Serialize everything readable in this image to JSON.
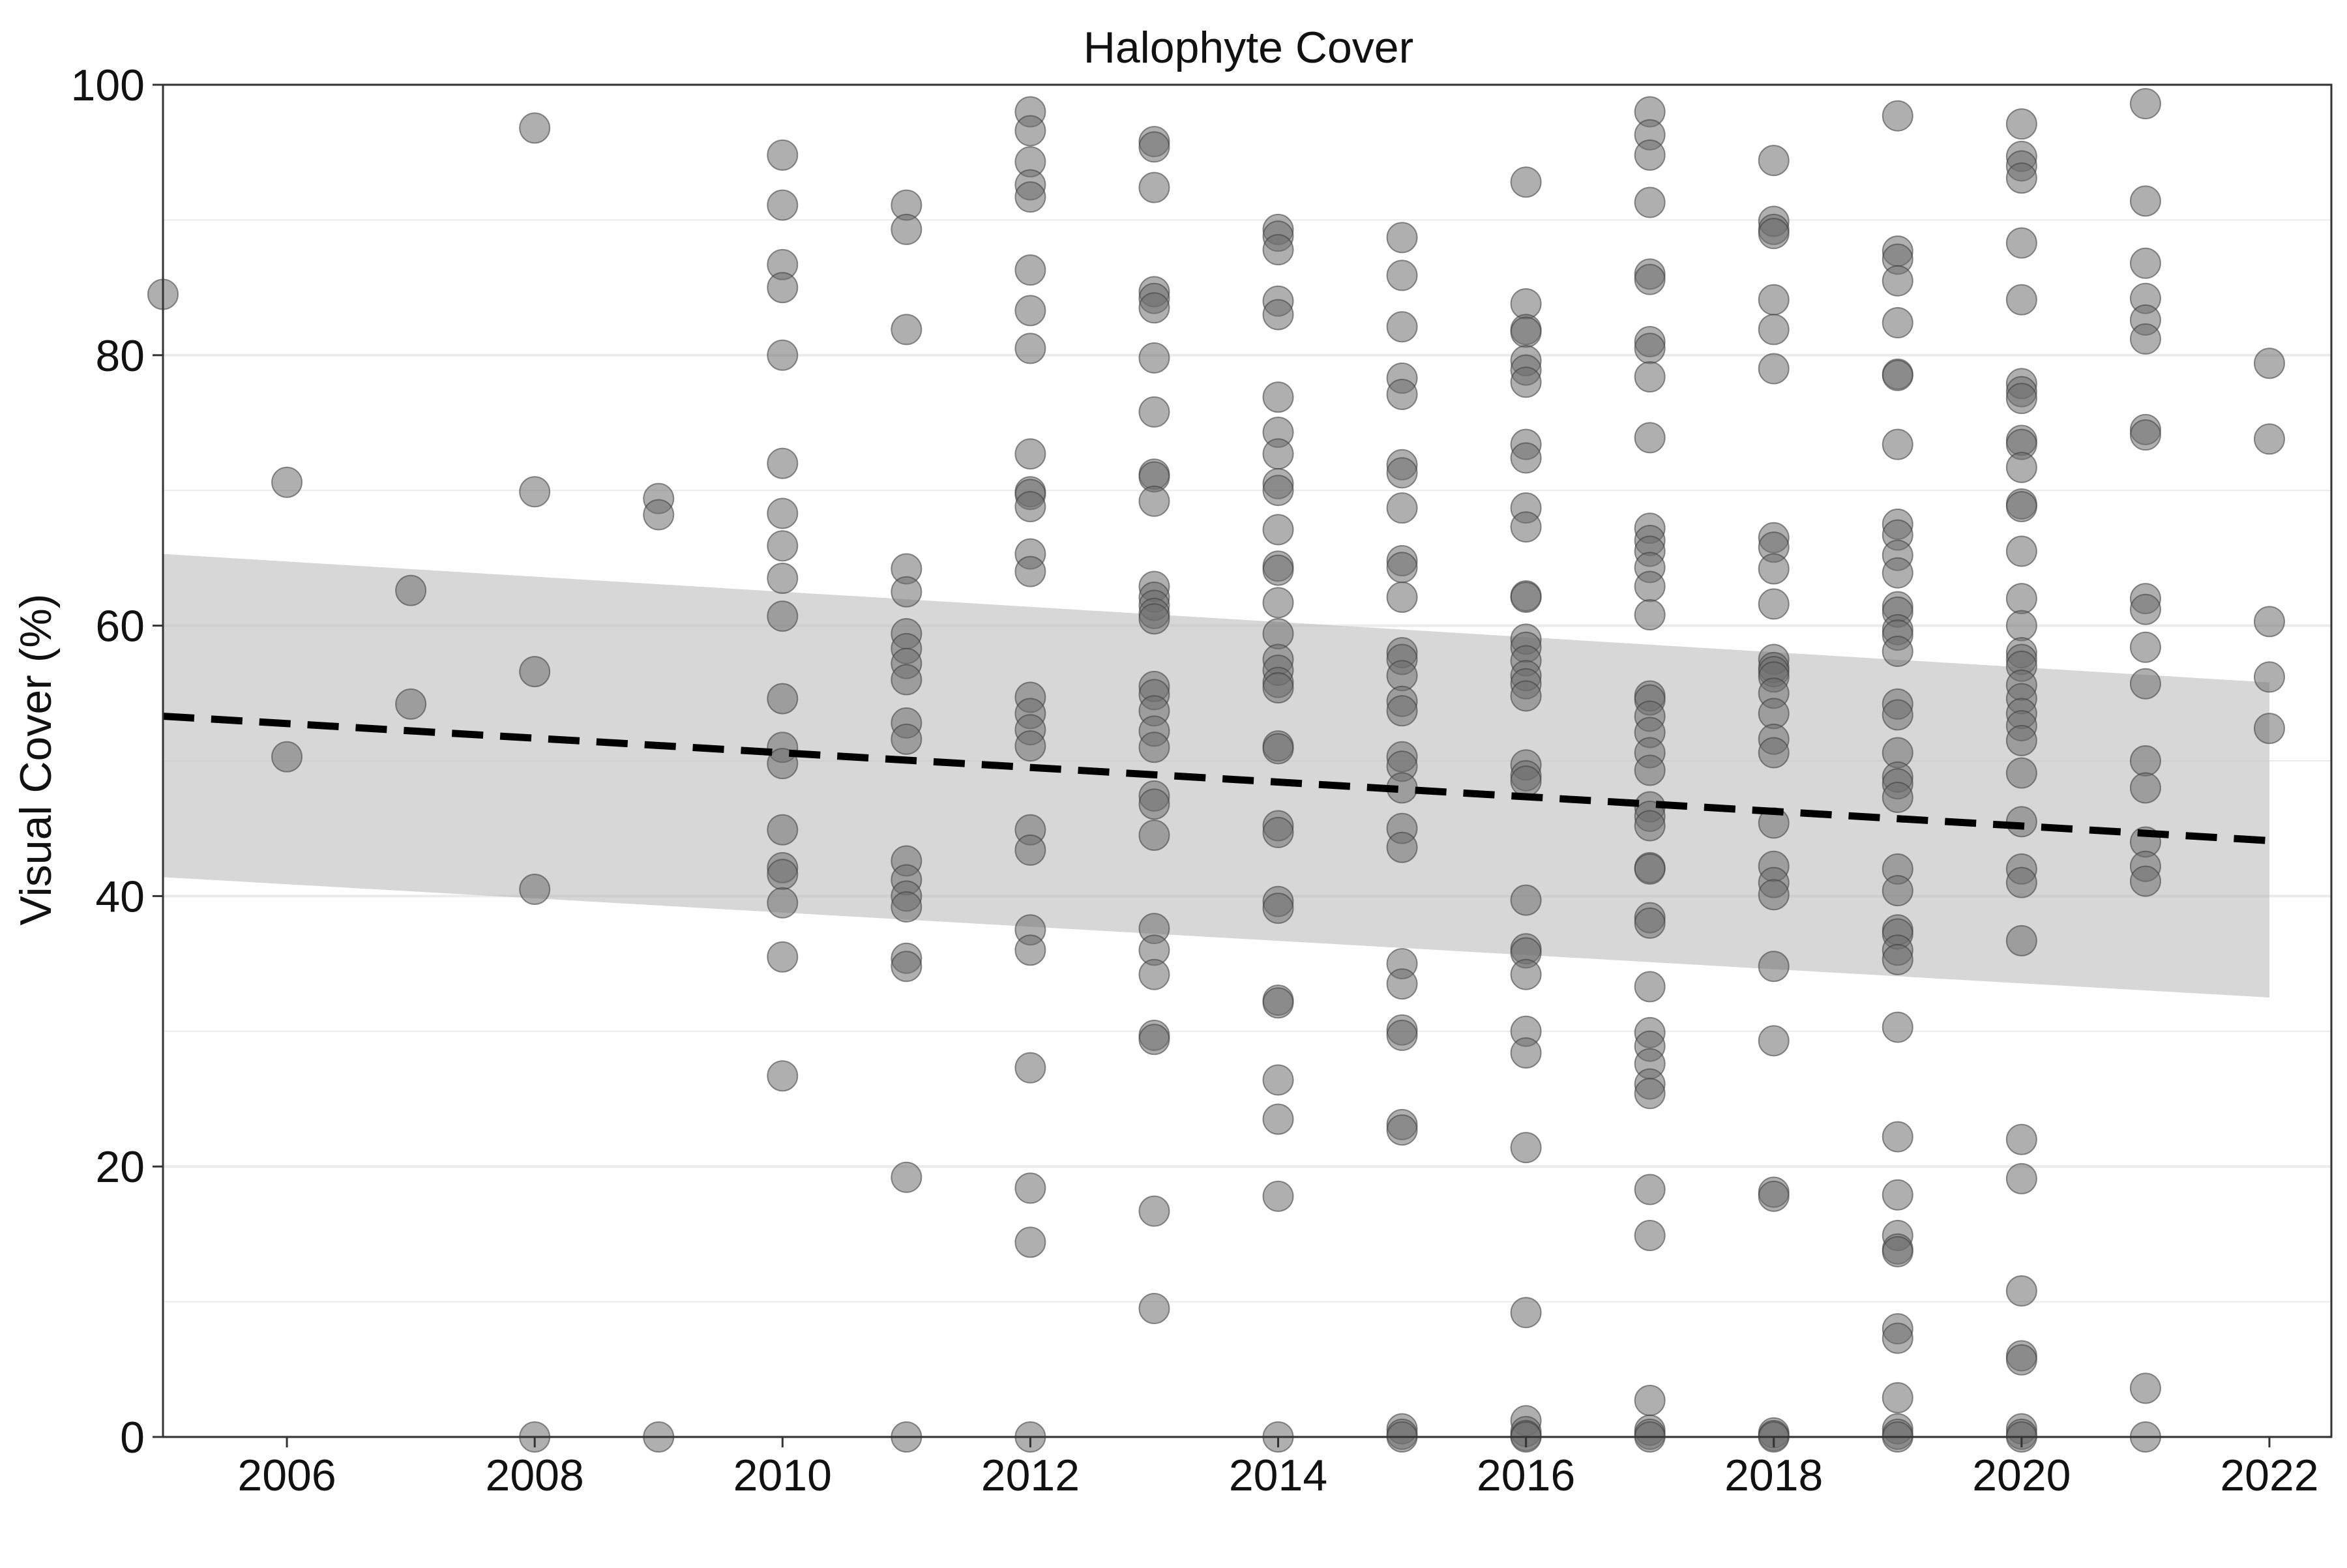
{
  "chart_data": {
    "type": "scatter",
    "title": "Halophyte Cover",
    "ylabel": "Visual Cover (%)",
    "xlabel": "",
    "xlim": [
      2005,
      2022.5
    ],
    "ylim": [
      0,
      100
    ],
    "x_ticks": [
      2006,
      2008,
      2010,
      2012,
      2014,
      2016,
      2018,
      2020,
      2022
    ],
    "y_ticks": [
      0,
      20,
      40,
      60,
      80,
      100
    ],
    "grid": "horizontal major and minor",
    "legend": "none",
    "colors": {
      "points": "#6e6e6e",
      "trend_line": "#000000",
      "confidence_band": "#bdbdbd",
      "grid": "#ebebeb",
      "axis": "#333333"
    },
    "trend": {
      "style": "dashed",
      "x": [
        2005,
        2022
      ],
      "y": [
        53.3,
        44.1
      ]
    },
    "confidence_band": {
      "x": [
        2005,
        2022
      ],
      "upper": [
        65.3,
        55.8
      ],
      "lower": [
        41.4,
        32.5
      ]
    },
    "series": [
      {
        "points": [
          {
            "year": 2005,
            "values": [
              84.5
            ]
          },
          {
            "year": 2006,
            "values": [
              70.6,
              50.3
            ]
          },
          {
            "year": 2007,
            "values": [
              62.6,
              54.2
            ]
          },
          {
            "year": 2008,
            "values": [
              96.8,
              69.9,
              56.6,
              40.5,
              0
            ]
          },
          {
            "year": 2009,
            "values": [
              69.4,
              68.2,
              0
            ]
          },
          {
            "year": 2010,
            "values": [
              94.8,
              91.1,
              86.7,
              85.0,
              80.0,
              72.0,
              68.3,
              65.9,
              63.5,
              60.7,
              54.6,
              51.0,
              49.8,
              44.9,
              42.1,
              41.6,
              39.5,
              35.5,
              26.7
            ]
          },
          {
            "year": 2011,
            "values": [
              91.1,
              89.3,
              81.9,
              64.2,
              62.5,
              59.4,
              58.3,
              57.2,
              56.0,
              52.8,
              51.6,
              42.6,
              41.2,
              40.0,
              39.2,
              35.4,
              34.8,
              19.2,
              0
            ]
          },
          {
            "year": 2012,
            "values": [
              98.0,
              96.6,
              94.3,
              92.6,
              91.7,
              86.3,
              83.3,
              80.5,
              72.7,
              69.9,
              69.7,
              68.8,
              65.3,
              64.0,
              54.7,
              53.5,
              52.3,
              51.1,
              44.9,
              43.4,
              37.5,
              36.0,
              27.3,
              18.4,
              14.4,
              0
            ]
          },
          {
            "year": 2013,
            "values": [
              95.8,
              95.4,
              92.4,
              84.7,
              84.2,
              83.5,
              79.8,
              75.8,
              71.2,
              71.0,
              69.2,
              62.9,
              62.1,
              61.5,
              60.9,
              60.5,
              55.5,
              54.9,
              53.7,
              52.2,
              51.0,
              47.4,
              46.8,
              44.5,
              37.6,
              36.0,
              34.2,
              29.7,
              29.4,
              16.7,
              9.5
            ]
          },
          {
            "year": 2014,
            "values": [
              89.3,
              88.8,
              87.8,
              84.0,
              83.0,
              76.9,
              74.3,
              72.7,
              70.5,
              70.0,
              67.1,
              64.4,
              64.1,
              61.7,
              59.4,
              57.5,
              56.7,
              55.8,
              55.4,
              51.1,
              50.9,
              45.2,
              44.7,
              39.6,
              39.1,
              32.3,
              32.1,
              26.4,
              23.5,
              17.8,
              0
            ]
          },
          {
            "year": 2015,
            "values": [
              88.7,
              85.9,
              82.1,
              78.3,
              77.1,
              71.9,
              71.3,
              68.7,
              64.8,
              64.3,
              62.1,
              58.0,
              57.5,
              56.3,
              54.4,
              53.7,
              50.3,
              49.6,
              48.0,
              45.0,
              43.6,
              35.0,
              33.5,
              30.1,
              29.7,
              23.1,
              22.7,
              0.6,
              0.2,
              0
            ]
          },
          {
            "year": 2016,
            "values": [
              92.8,
              83.8,
              81.9,
              81.7,
              79.6,
              78.9,
              78.0,
              73.4,
              72.4,
              68.7,
              67.3,
              62.2,
              62.1,
              59.0,
              58.4,
              57.4,
              56.3,
              55.7,
              54.8,
              49.7,
              48.9,
              48.5,
              39.7,
              36.1,
              35.8,
              34.2,
              30.0,
              28.4,
              21.4,
              9.2,
              1.2,
              0.4,
              0.1,
              0
            ]
          },
          {
            "year": 2017,
            "values": [
              98.0,
              96.3,
              94.8,
              91.3,
              86.0,
              85.6,
              81.0,
              80.5,
              78.4,
              73.9,
              67.2,
              66.3,
              65.5,
              64.3,
              62.9,
              60.8,
              54.8,
              54.5,
              53.3,
              52.1,
              50.6,
              49.3,
              46.6,
              45.9,
              45.2,
              42.1,
              42.0,
              38.4,
              38.0,
              33.3,
              29.9,
              28.9,
              27.6,
              26.1,
              25.4,
              18.3,
              14.9,
              2.7,
              0.5,
              0.2,
              0
            ]
          },
          {
            "year": 2018,
            "values": [
              94.4,
              89.9,
              89.3,
              89.0,
              84.1,
              81.9,
              79.0,
              66.5,
              65.8,
              64.2,
              61.6,
              57.5,
              56.9,
              56.6,
              56.2,
              55.0,
              53.5,
              51.6,
              50.6,
              45.4,
              42.2,
              41.0,
              40.1,
              34.8,
              29.3,
              18.1,
              17.8,
              0.3,
              0.1,
              0
            ]
          },
          {
            "year": 2019,
            "values": [
              97.7,
              87.7,
              87.1,
              85.5,
              82.4,
              78.6,
              78.5,
              73.4,
              67.5,
              66.7,
              65.2,
              63.9,
              61.4,
              61.0,
              59.7,
              59.3,
              58.1,
              54.2,
              53.4,
              50.6,
              48.8,
              48.3,
              47.3,
              42.0,
              40.4,
              37.5,
              37.2,
              36.0,
              35.3,
              30.3,
              22.2,
              17.9,
              14.9,
              13.9,
              13.7,
              8.0,
              7.3,
              2.9,
              0.6,
              0.2,
              0
            ]
          },
          {
            "year": 2020,
            "values": [
              97.1,
              94.7,
              94.0,
              93.1,
              88.3,
              84.1,
              77.9,
              77.3,
              76.8,
              73.7,
              73.4,
              71.7,
              69.0,
              68.8,
              65.5,
              62.0,
              60.0,
              58.0,
              57.5,
              57.0,
              55.6,
              54.6,
              53.5,
              52.6,
              51.5,
              49.1,
              45.5,
              42.0,
              41.0,
              36.7,
              22.0,
              19.1,
              10.8,
              6.0,
              5.7,
              0.6,
              0.2,
              0
            ]
          },
          {
            "year": 2021,
            "values": [
              98.6,
              91.4,
              86.8,
              84.2,
              82.6,
              81.2,
              74.5,
              74.1,
              62.0,
              61.2,
              58.4,
              55.7,
              50.0,
              48.0,
              44.0,
              42.2,
              41.1,
              3.6,
              0
            ]
          },
          {
            "year": 2022,
            "values": [
              79.4,
              73.8,
              60.3,
              56.2,
              52.4
            ]
          }
        ]
      }
    ]
  }
}
